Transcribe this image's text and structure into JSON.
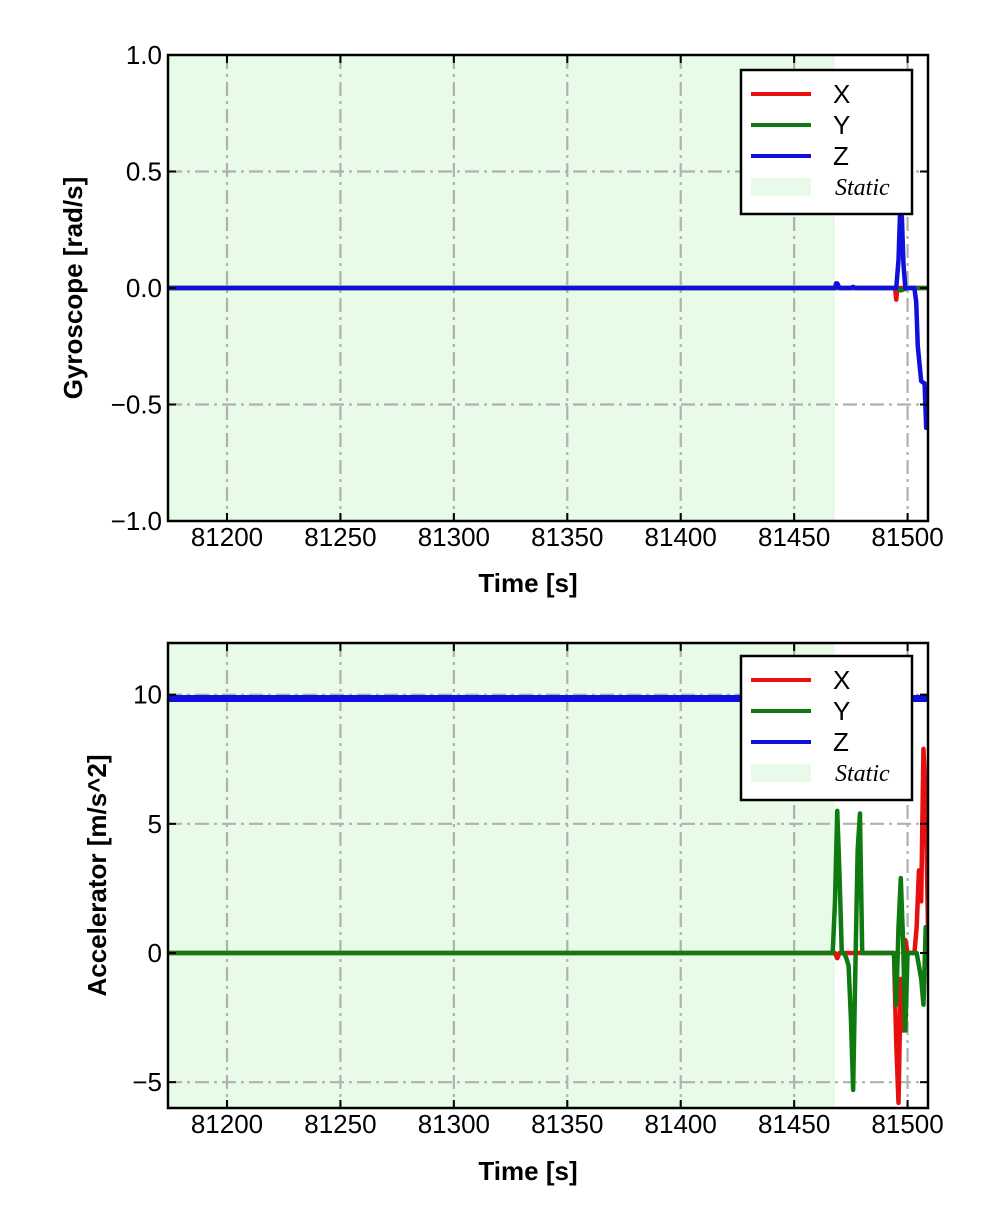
{
  "chart_data": [
    {
      "type": "line",
      "xlabel": "Time [s]",
      "ylabel": "Gyroscope [rad/s]",
      "xlim": [
        81174,
        81509
      ],
      "ylim": [
        -1.0,
        1.0
      ],
      "xticks": [
        81200,
        81250,
        81300,
        81350,
        81400,
        81450,
        81500
      ],
      "yticks": [
        -1.0,
        -0.5,
        0.0,
        0.5,
        1.0
      ],
      "xtick_labels": [
        "81200",
        "81250",
        "81300",
        "81350",
        "81400",
        "81450",
        "81500"
      ],
      "ytick_labels": [
        "−1.0",
        "−0.5",
        "0.0",
        "0.5",
        "1.0"
      ],
      "grid": true,
      "legend_position": "top-right",
      "static_region": {
        "x": [
          81174,
          81468
        ],
        "color": "#e8fbe8",
        "label": "Static"
      },
      "series": [
        {
          "name": "X",
          "color": "#e8100f",
          "x": [
            81174,
            81468,
            81469,
            81470,
            81475,
            81494.5,
            81495,
            81495.5,
            81496,
            81498,
            81500,
            81503,
            81506,
            81509
          ],
          "y": [
            0.0,
            0.0,
            0.01,
            0.0,
            0.0,
            0.0,
            -0.05,
            0.0,
            0.0,
            0.0,
            0.0,
            0.0,
            0.0,
            0.0
          ]
        },
        {
          "name": "Y",
          "color": "#0f7a0f",
          "x": [
            81174,
            81468,
            81470,
            81480,
            81495,
            81497,
            81500,
            81503,
            81506,
            81509
          ],
          "y": [
            0.0,
            0.0,
            0.0,
            0.0,
            0.0,
            -0.01,
            0.0,
            0.0,
            0.0,
            0.0
          ]
        },
        {
          "name": "Z",
          "color": "#1010dd",
          "x": [
            81174,
            81468,
            81468.5,
            81469,
            81470,
            81475,
            81476,
            81477,
            81495,
            81496,
            81496.8,
            81497.5,
            81498.2,
            81499,
            81500,
            81503,
            81503.8,
            81504.5,
            81506,
            81507.5,
            81508.2,
            81509
          ],
          "y": [
            0.0,
            0.0,
            0.02,
            0.02,
            0.0,
            0.0,
            0.005,
            0.0,
            0.0,
            0.12,
            0.36,
            0.3,
            0.1,
            0.0,
            0.0,
            0.0,
            -0.06,
            -0.25,
            -0.4,
            -0.41,
            -0.6,
            -0.6
          ]
        }
      ]
    },
    {
      "type": "line",
      "xlabel": "Time [s]",
      "ylabel": "Accelerator [m/s^2]",
      "xlim": [
        81174,
        81509
      ],
      "ylim": [
        -6,
        12
      ],
      "xticks": [
        81200,
        81250,
        81300,
        81350,
        81400,
        81450,
        81500
      ],
      "yticks": [
        -5,
        0,
        5,
        10
      ],
      "xtick_labels": [
        "81200",
        "81250",
        "81300",
        "81350",
        "81400",
        "81450",
        "81500"
      ],
      "ytick_labels": [
        "−5",
        "0",
        "5",
        "10"
      ],
      "grid": true,
      "legend_position": "top-right",
      "static_region": {
        "x": [
          81174,
          81468
        ],
        "color": "#e8fbe8",
        "label": "Static"
      },
      "series": [
        {
          "name": "X",
          "color": "#e8100f",
          "x": [
            81174,
            81468,
            81469,
            81470,
            81480,
            81494,
            81495,
            81496,
            81497,
            81498,
            81499,
            81500,
            81501,
            81503,
            81504,
            81505,
            81506,
            81507,
            81508,
            81509
          ],
          "y": [
            0.0,
            0.0,
            -0.2,
            0.0,
            0.0,
            0.0,
            -3.5,
            -5.8,
            -1.0,
            -3.0,
            0.5,
            0.0,
            0.0,
            0.0,
            1.0,
            3.2,
            2.0,
            7.9,
            6.0,
            1.0
          ]
        },
        {
          "name": "Y",
          "color": "#0f7a0f",
          "x": [
            81174,
            81467,
            81468,
            81469,
            81470,
            81471,
            81472,
            81473,
            81474,
            81475,
            81476,
            81477,
            81478,
            81479,
            81480,
            81482,
            81494,
            81495,
            81496,
            81497,
            81498,
            81499,
            81500,
            81502,
            81503,
            81504,
            81505,
            81506,
            81507,
            81508,
            81509
          ],
          "y": [
            0.0,
            0.0,
            2.0,
            5.5,
            3.0,
            0.0,
            0.0,
            -0.2,
            -0.5,
            -2.5,
            -5.3,
            -0.5,
            4.0,
            5.4,
            0.0,
            0.0,
            0.0,
            -2.0,
            1.0,
            2.9,
            0.5,
            -3.0,
            0.0,
            0.0,
            0.0,
            0.0,
            -0.5,
            -1.0,
            -2.0,
            1.0,
            0.5
          ]
        },
        {
          "name": "Z",
          "color": "#1010dd",
          "x": [
            81174,
            81300,
            81400,
            81468,
            81470,
            81480,
            81495,
            81500,
            81505,
            81509
          ],
          "y": [
            9.85,
            9.85,
            9.85,
            9.85,
            9.85,
            9.85,
            9.85,
            9.85,
            9.85,
            9.85
          ]
        }
      ]
    }
  ]
}
